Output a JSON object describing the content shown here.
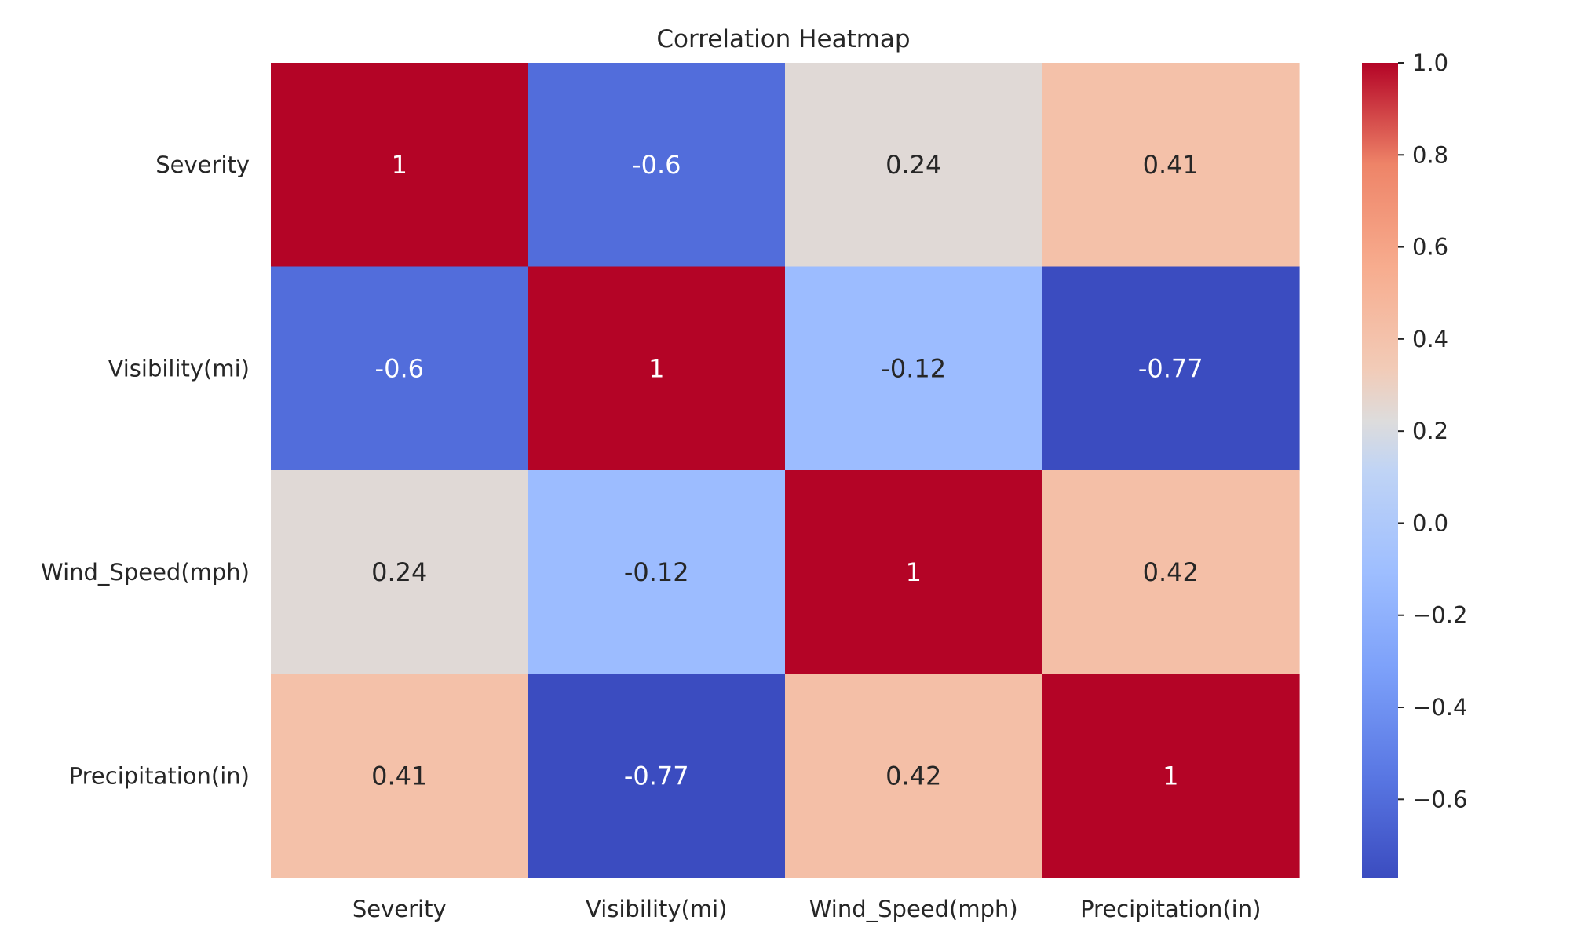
{
  "chart_data": {
    "type": "heatmap",
    "title": "Correlation Heatmap",
    "xlabel": "",
    "ylabel": "",
    "row_labels": [
      "Severity",
      "Visibility(mi)",
      "Wind_Speed(mph)",
      "Precipitation(in)"
    ],
    "col_labels": [
      "Severity",
      "Visibility(mi)",
      "Wind_Speed(mph)",
      "Precipitation(in)"
    ],
    "values": [
      [
        1,
        -0.6,
        0.24,
        0.41
      ],
      [
        -0.6,
        1,
        -0.12,
        -0.77
      ],
      [
        0.24,
        -0.12,
        1,
        0.42
      ],
      [
        0.41,
        -0.77,
        0.42,
        1
      ]
    ],
    "annotations": [
      [
        "1",
        "-0.6",
        "0.24",
        "0.41"
      ],
      [
        "-0.6",
        "1",
        "-0.12",
        "-0.77"
      ],
      [
        "0.24",
        "-0.12",
        "1",
        "0.42"
      ],
      [
        "0.41",
        "-0.77",
        "0.42",
        "1"
      ]
    ],
    "colormap": "coolwarm",
    "colorbar": {
      "vmin": -0.77,
      "vmax": 1.0,
      "ticks": [
        1.0,
        0.8,
        0.6,
        0.4,
        0.2,
        0.0,
        -0.2,
        -0.4,
        -0.6
      ],
      "tick_labels": [
        "1.0",
        "0.8",
        "0.6",
        "0.4",
        "0.2",
        "0.0",
        "−0.2",
        "−0.4",
        "−0.6"
      ]
    },
    "grid": false,
    "legend": "colorbar-right"
  }
}
